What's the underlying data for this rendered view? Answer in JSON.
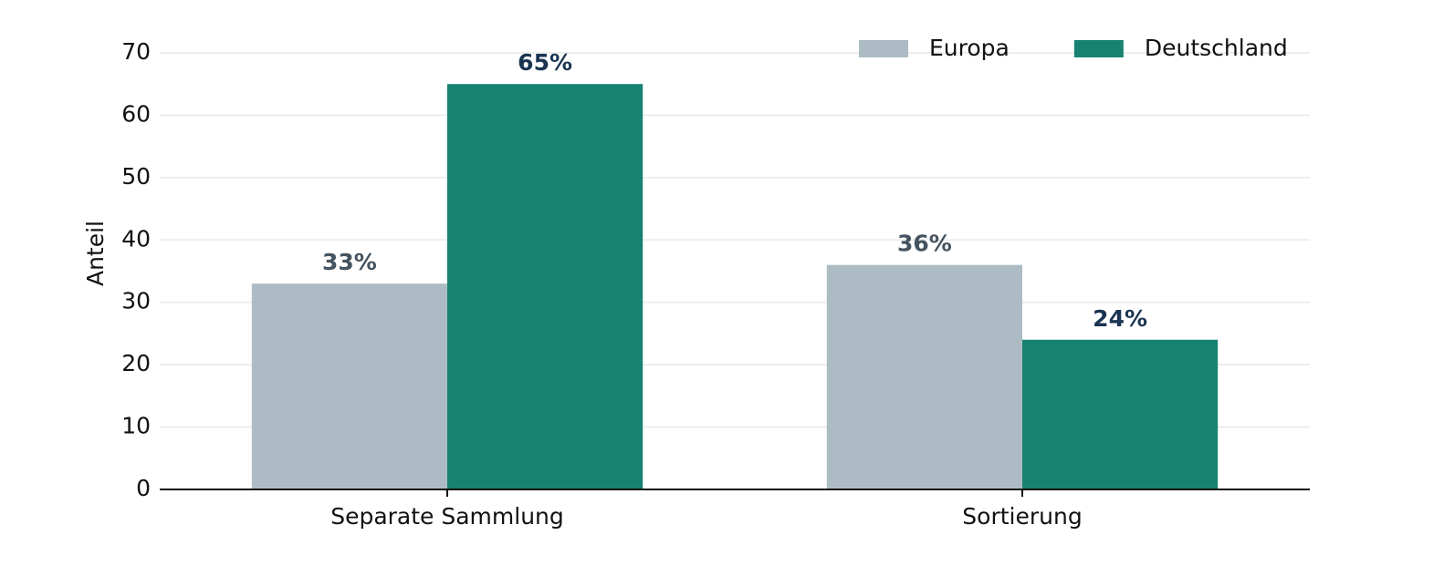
{
  "chart_data": {
    "type": "bar",
    "y_label": "Anteil",
    "categories": [
      "Separate Sammlung",
      "Sortierung"
    ],
    "series": [
      {
        "name": "Europa",
        "color": "#adbcc4",
        "label_color": "#44535f",
        "values": [
          33,
          36
        ],
        "value_labels": [
          "33%",
          "36%"
        ]
      },
      {
        "name": "Deutschland",
        "color": "#188272",
        "label_color": "#1a3452",
        "values": [
          65,
          24
        ],
        "value_labels": [
          "65%",
          "24%"
        ]
      }
    ],
    "ylim": [
      0,
      70
    ],
    "yticks": [
      0,
      10,
      20,
      30,
      40,
      50,
      60,
      70
    ],
    "grid": true,
    "legend": "upper right"
  }
}
